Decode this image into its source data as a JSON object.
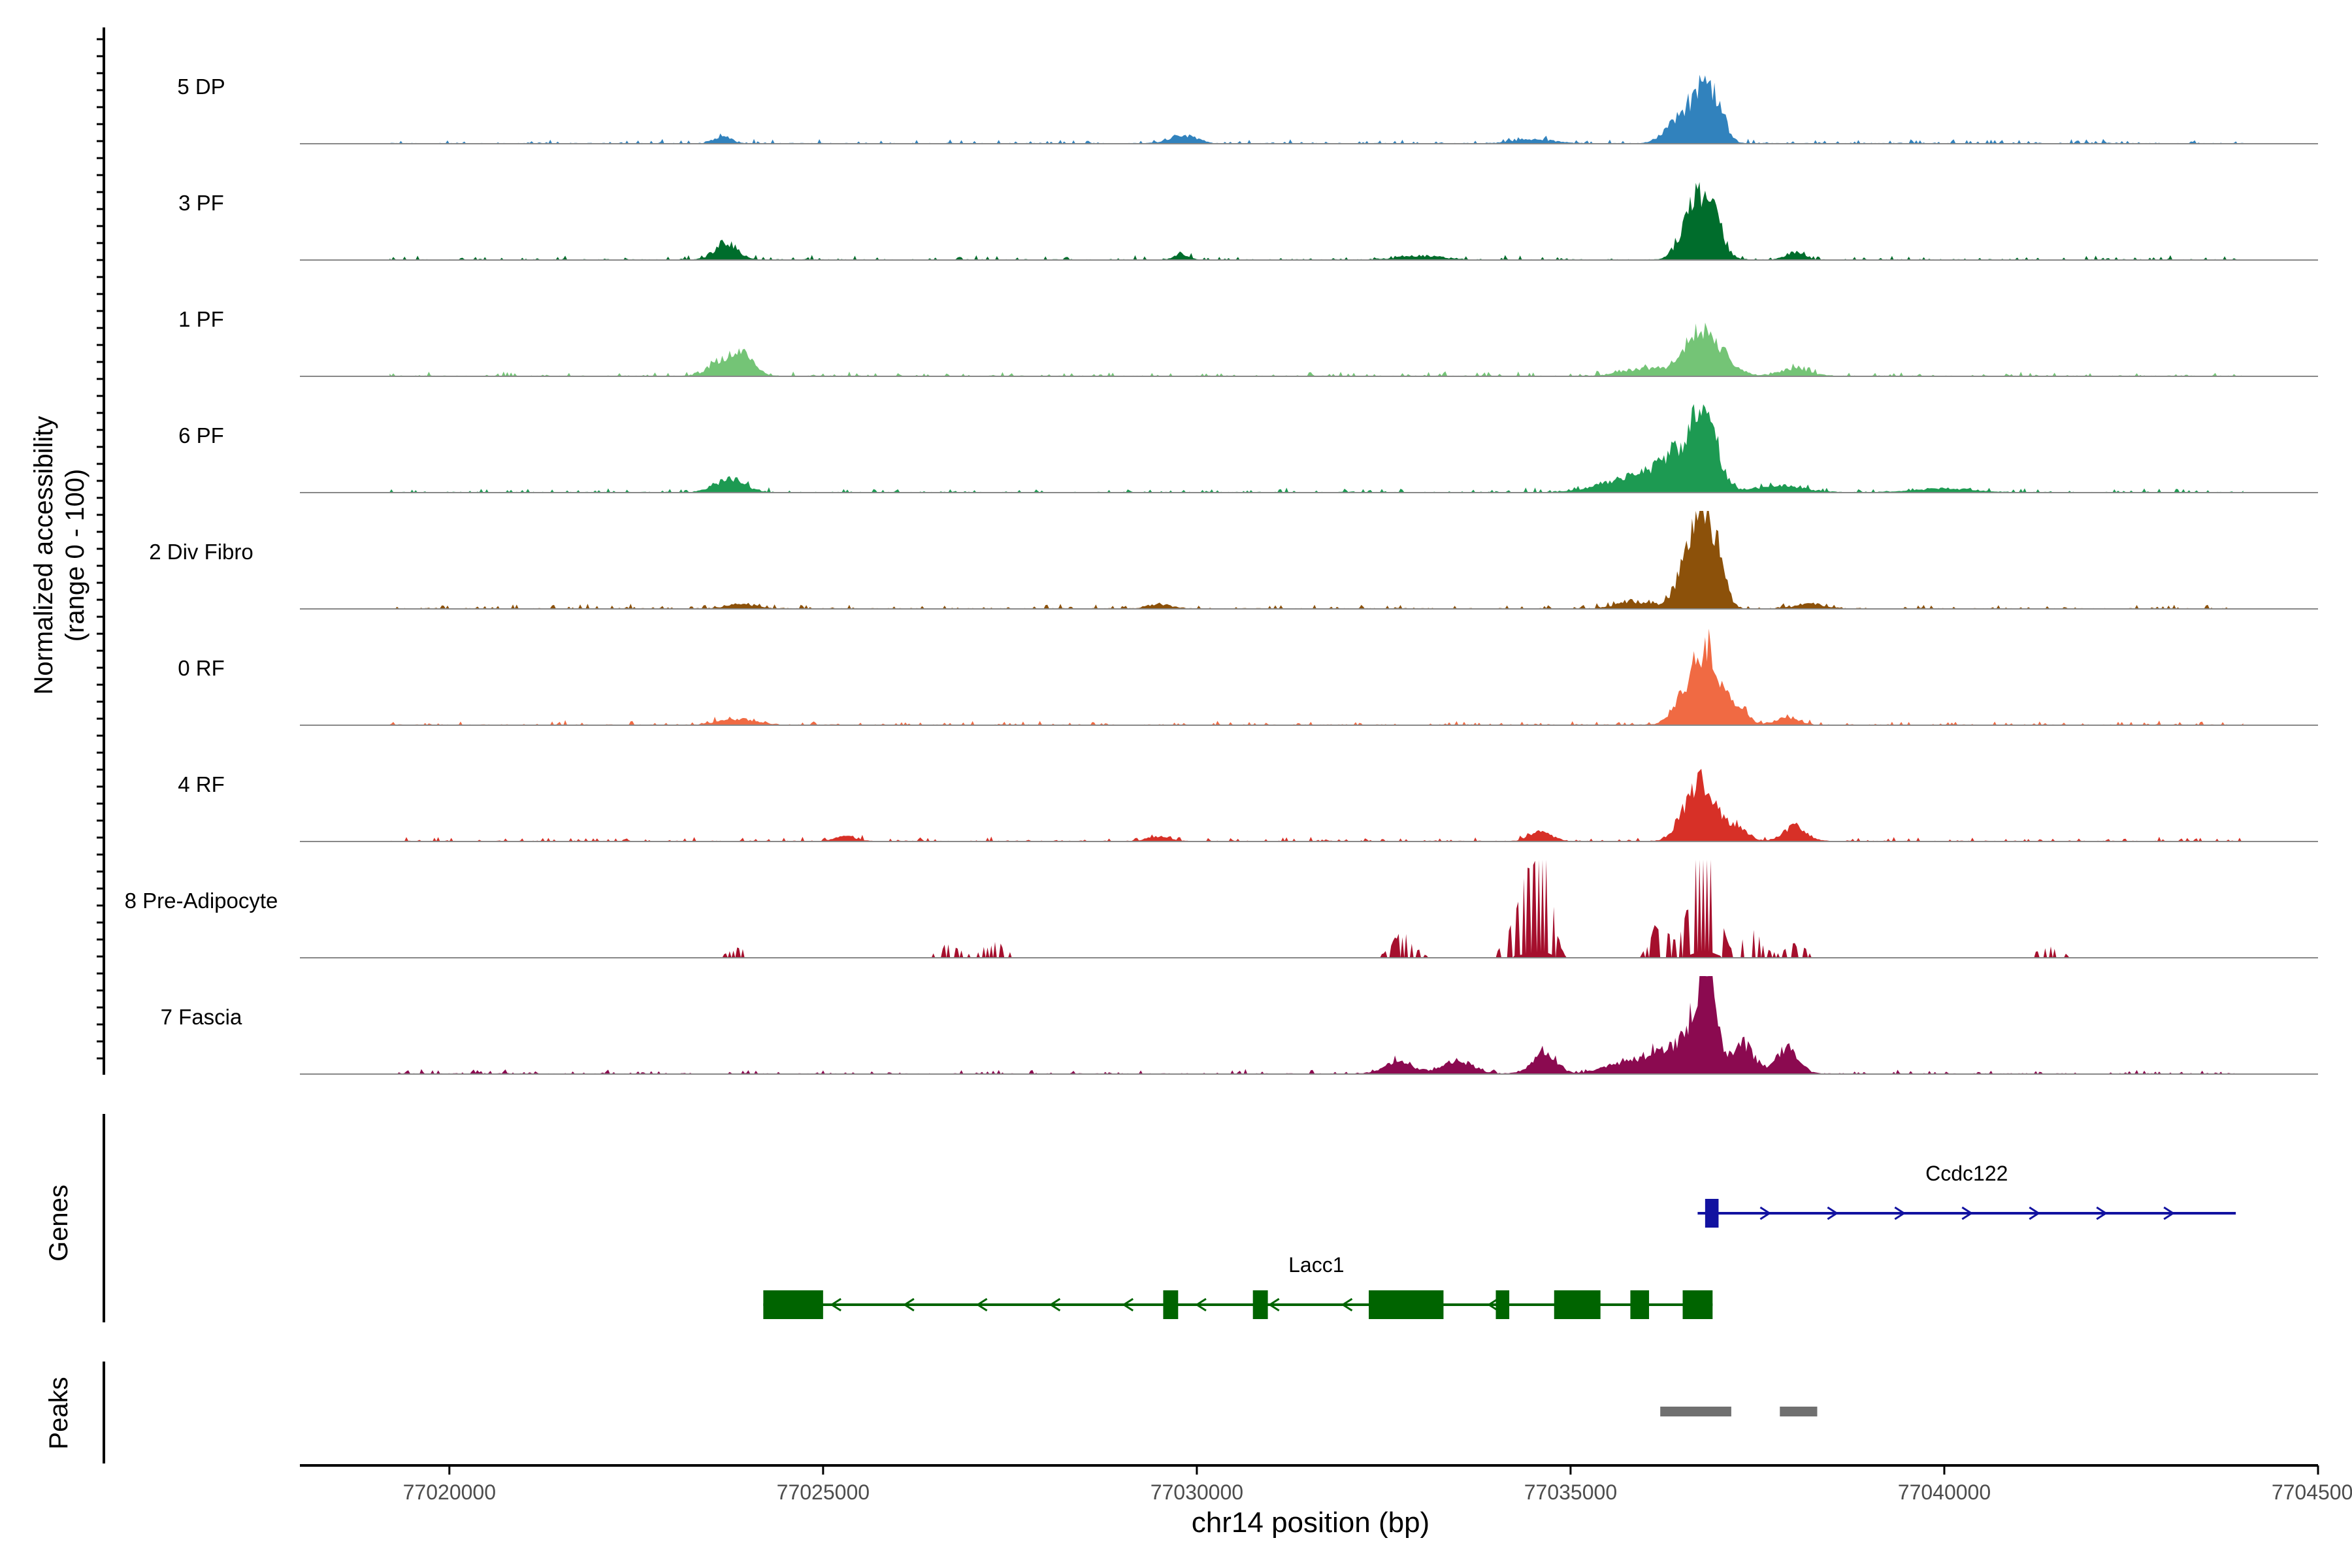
{
  "chart_data": {
    "type": "area",
    "title": "",
    "xlabel": "chr14 position (bp)",
    "ylabel_line1": "Normalized accessibility",
    "ylabel_line2": "(range 0 - 100)",
    "xlim": [
      77018000,
      77045000
    ],
    "x_ticks": [
      77020000,
      77025000,
      77030000,
      77035000,
      77040000,
      77045000
    ],
    "x_tick_labels": [
      "77020000",
      "77025000",
      "77030000",
      "77035000",
      "77040000",
      "77045000"
    ],
    "tracks": [
      {
        "name": "5 DP",
        "color": "#3182bd",
        "spiky": false,
        "peaks": [
          [
            77023650,
            120,
            7
          ],
          [
            77029800,
            180,
            9
          ],
          [
            77036500,
            200,
            28
          ],
          [
            77036800,
            160,
            48
          ],
          [
            77037000,
            100,
            18
          ],
          [
            77034500,
            300,
            4
          ]
        ]
      },
      {
        "name": "3 PF",
        "color": "#006d2c",
        "spiky": false,
        "peaks": [
          [
            77023700,
            150,
            18
          ],
          [
            77029800,
            100,
            6
          ],
          [
            77036600,
            150,
            40
          ],
          [
            77036850,
            150,
            62
          ],
          [
            77038000,
            120,
            8
          ],
          [
            77033000,
            300,
            4
          ]
        ]
      },
      {
        "name": "1 PF",
        "color": "#74c476",
        "spiky": false,
        "peaks": [
          [
            77023650,
            180,
            16
          ],
          [
            77023950,
            150,
            20
          ],
          [
            77036700,
            200,
            40
          ],
          [
            77037000,
            200,
            18
          ],
          [
            77036000,
            300,
            8
          ],
          [
            77038000,
            200,
            8
          ]
        ]
      },
      {
        "name": "6 PF",
        "color": "#1d9a52",
        "spiky": false,
        "peaks": [
          [
            77023750,
            200,
            14
          ],
          [
            77036500,
            300,
            42
          ],
          [
            77036800,
            150,
            72
          ],
          [
            77035800,
            400,
            14
          ],
          [
            77037800,
            300,
            8
          ],
          [
            77040000,
            400,
            4
          ]
        ]
      },
      {
        "name": "2 Div Fibro",
        "color": "#8c510a",
        "spiky": false,
        "peaks": [
          [
            77023900,
            200,
            5
          ],
          [
            77029500,
            150,
            5
          ],
          [
            77036600,
            180,
            45
          ],
          [
            77036800,
            150,
            84
          ],
          [
            77037000,
            100,
            22
          ],
          [
            77035800,
            200,
            8
          ],
          [
            77038200,
            200,
            5
          ]
        ]
      },
      {
        "name": "0 RF",
        "color": "#f06a43",
        "spiky": false,
        "peaks": [
          [
            77023850,
            250,
            6
          ],
          [
            77036600,
            180,
            38
          ],
          [
            77036850,
            150,
            68
          ],
          [
            77037200,
            150,
            22
          ],
          [
            77037900,
            150,
            8
          ]
        ]
      },
      {
        "name": "4 RF",
        "color": "#d73027",
        "spiky": false,
        "peaks": [
          [
            77036550,
            150,
            28
          ],
          [
            77036800,
            150,
            52
          ],
          [
            77037200,
            150,
            18
          ],
          [
            77038000,
            150,
            16
          ],
          [
            77034600,
            150,
            10
          ],
          [
            77025300,
            150,
            5
          ],
          [
            77029500,
            150,
            5
          ]
        ]
      },
      {
        "name": "8 Pre-Adipocyte",
        "color": "#a50f2d",
        "spiky": true,
        "peaks": [
          [
            77034500,
            150,
            58
          ],
          [
            77034650,
            100,
            82
          ],
          [
            77034300,
            150,
            30
          ],
          [
            77036700,
            140,
            72
          ],
          [
            77036850,
            120,
            83
          ],
          [
            77036200,
            120,
            32
          ],
          [
            77037400,
            150,
            25
          ],
          [
            77032750,
            150,
            20
          ],
          [
            77026700,
            150,
            12
          ],
          [
            77027300,
            150,
            14
          ],
          [
            77023900,
            150,
            9
          ],
          [
            77041400,
            150,
            10
          ],
          [
            77038000,
            150,
            12
          ]
        ]
      },
      {
        "name": "7 Fascia",
        "color": "#8b0a50",
        "spiky": false,
        "peaks": [
          [
            77036700,
            150,
            55
          ],
          [
            77036850,
            120,
            70
          ],
          [
            77036300,
            200,
            25
          ],
          [
            77037300,
            150,
            32
          ],
          [
            77037900,
            150,
            27
          ],
          [
            77034650,
            150,
            26
          ],
          [
            77033500,
            200,
            14
          ],
          [
            77032700,
            200,
            12
          ],
          [
            77035800,
            300,
            14
          ]
        ]
      }
    ],
    "genes": [
      {
        "name": "Ccdc122",
        "strand": "+",
        "color": "#1212a0",
        "start": 77036700,
        "end": 77043900,
        "exons": [
          [
            77036800,
            77036980
          ]
        ]
      },
      {
        "name": "Lacc1",
        "strand": "-",
        "color": "#006400",
        "start": 77024200,
        "end": 77036900,
        "exons": [
          [
            77024200,
            77025000
          ],
          [
            77029550,
            77029750
          ],
          [
            77030750,
            77030950
          ],
          [
            77032300,
            77033300
          ],
          [
            77034000,
            77034180
          ],
          [
            77034780,
            77035400
          ],
          [
            77035800,
            77036050
          ],
          [
            77036500,
            77036900
          ]
        ]
      }
    ],
    "peaks_track": [
      [
        77036200,
        77037150
      ],
      [
        77037800,
        77038300
      ]
    ],
    "panel_labels": {
      "genes": "Genes",
      "peaks": "Peaks"
    }
  }
}
